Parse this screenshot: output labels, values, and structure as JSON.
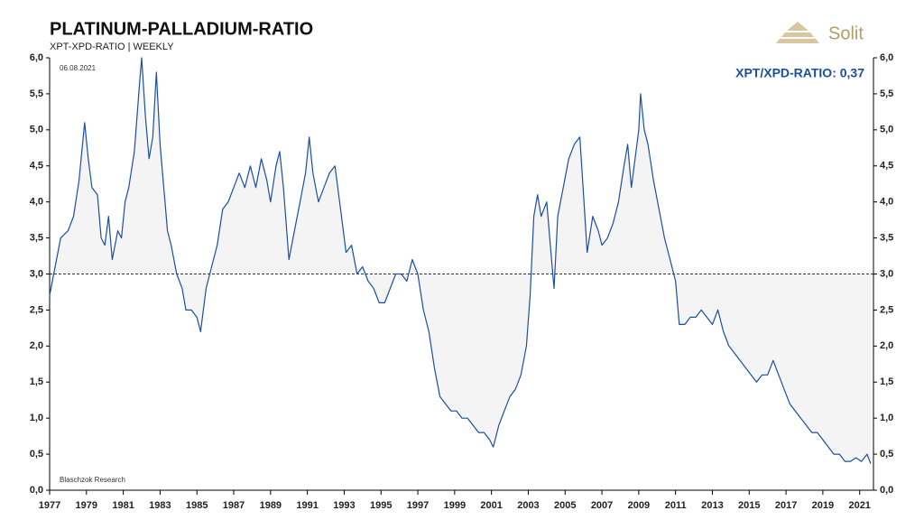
{
  "chart_data": {
    "type": "line",
    "title": "PLATINUM-PALLADIUM-RATIO",
    "subtitle": "XPT-XPD-RATIO | WEEKLY",
    "logo": "Solit",
    "annotations": {
      "date": "06.08.2021",
      "source": "Blaschzok Research",
      "last_value": "XPT/XPD-RATIO: 0,37"
    },
    "reference_line": 3,
    "xlim": [
      1977,
      2021.75
    ],
    "xticks": [
      1977,
      1979,
      1981,
      1983,
      1985,
      1987,
      1989,
      1991,
      1993,
      1995,
      1997,
      1999,
      2001,
      2003,
      2005,
      2007,
      2009,
      2011,
      2013,
      2015,
      2017,
      2019,
      2021
    ],
    "ylim": [
      0,
      6
    ],
    "yticks": [
      {
        "value": 0,
        "label": "0,0"
      },
      {
        "value": 0.5,
        "label": "0,5"
      },
      {
        "value": 1,
        "label": "1,0"
      },
      {
        "value": 1.5,
        "label": "1,5"
      },
      {
        "value": 2,
        "label": "2,0"
      },
      {
        "value": 2.5,
        "label": "2,5"
      },
      {
        "value": 3,
        "label": "3,0"
      },
      {
        "value": 3.5,
        "label": "3,5"
      },
      {
        "value": 4,
        "label": "4,0"
      },
      {
        "value": 4.5,
        "label": "4,5"
      },
      {
        "value": 5,
        "label": "5,0"
      },
      {
        "value": 5.5,
        "label": "5,5"
      },
      {
        "value": 6,
        "label": "6,0"
      }
    ],
    "y2lim": [
      0,
      6
    ],
    "y2ticks": [
      {
        "value": 0,
        "label": "0,0"
      },
      {
        "value": 0.5,
        "label": "0,5"
      },
      {
        "value": 1,
        "label": "1,0"
      },
      {
        "value": 1.5,
        "label": "1,5"
      },
      {
        "value": 2,
        "label": "2,0"
      },
      {
        "value": 2.5,
        "label": "2,5"
      },
      {
        "value": 3,
        "label": "3,0"
      },
      {
        "value": 3.5,
        "label": "3,5"
      },
      {
        "value": 4,
        "label": "4,0"
      },
      {
        "value": 4.5,
        "label": "4,5"
      },
      {
        "value": 5,
        "label": "5,0"
      },
      {
        "value": 5.5,
        "label": "5,5"
      },
      {
        "value": 6,
        "label": "6,0"
      }
    ],
    "x": [
      1977.0,
      1977.3,
      1977.6,
      1978.0,
      1978.3,
      1978.6,
      1978.9,
      1979.1,
      1979.3,
      1979.6,
      1979.8,
      1980.0,
      1980.2,
      1980.4,
      1980.7,
      1980.9,
      1981.1,
      1981.3,
      1981.6,
      1981.9,
      1982.0,
      1982.2,
      1982.4,
      1982.6,
      1982.8,
      1983.0,
      1983.2,
      1983.4,
      1983.6,
      1983.9,
      1984.2,
      1984.4,
      1984.7,
      1985.0,
      1985.2,
      1985.5,
      1985.8,
      1986.1,
      1986.4,
      1986.7,
      1987.0,
      1987.3,
      1987.6,
      1987.9,
      1988.2,
      1988.5,
      1988.8,
      1989.0,
      1989.3,
      1989.5,
      1989.7,
      1990.0,
      1990.3,
      1990.6,
      1990.9,
      1991.1,
      1991.3,
      1991.6,
      1991.9,
      1992.2,
      1992.5,
      1992.8,
      1993.1,
      1993.4,
      1993.7,
      1994.0,
      1994.3,
      1994.6,
      1994.9,
      1995.2,
      1995.5,
      1995.8,
      1996.1,
      1996.4,
      1996.7,
      1997.0,
      1997.3,
      1997.6,
      1997.9,
      1998.2,
      1998.5,
      1998.8,
      1999.1,
      1999.4,
      1999.7,
      2000.0,
      2000.3,
      2000.6,
      2000.9,
      2001.1,
      2001.4,
      2001.7,
      2002.0,
      2002.3,
      2002.6,
      2002.9,
      2003.1,
      2003.3,
      2003.5,
      2003.7,
      2004.0,
      2004.2,
      2004.4,
      2004.6,
      2004.9,
      2005.2,
      2005.5,
      2005.8,
      2006.0,
      2006.2,
      2006.5,
      2006.8,
      2007.0,
      2007.3,
      2007.6,
      2007.9,
      2008.2,
      2008.4,
      2008.6,
      2008.8,
      2009.0,
      2009.1,
      2009.3,
      2009.5,
      2009.8,
      2010.1,
      2010.4,
      2010.7,
      2011.0,
      2011.2,
      2011.5,
      2011.8,
      2012.1,
      2012.4,
      2012.7,
      2013.0,
      2013.3,
      2013.6,
      2013.9,
      2014.2,
      2014.5,
      2014.8,
      2015.1,
      2015.4,
      2015.7,
      2016.0,
      2016.3,
      2016.6,
      2016.9,
      2017.2,
      2017.5,
      2017.8,
      2018.1,
      2018.4,
      2018.7,
      2019.0,
      2019.3,
      2019.6,
      2019.9,
      2020.2,
      2020.5,
      2020.8,
      2021.1,
      2021.4,
      2021.6
    ],
    "series": [
      {
        "name": "XPT/XPD-RATIO",
        "color": "#1a4fa3",
        "values": [
          2.7,
          3.1,
          3.5,
          3.6,
          3.8,
          4.3,
          5.1,
          4.6,
          4.2,
          4.1,
          3.5,
          3.4,
          3.8,
          3.2,
          3.6,
          3.5,
          4.0,
          4.2,
          4.7,
          5.7,
          6.0,
          5.2,
          4.6,
          4.9,
          5.8,
          4.8,
          4.2,
          3.6,
          3.4,
          3.0,
          2.8,
          2.5,
          2.5,
          2.4,
          2.2,
          2.8,
          3.1,
          3.4,
          3.9,
          4.0,
          4.2,
          4.4,
          4.2,
          4.5,
          4.2,
          4.6,
          4.3,
          4.0,
          4.5,
          4.7,
          4.2,
          3.2,
          3.6,
          4.0,
          4.4,
          4.9,
          4.4,
          4.0,
          4.2,
          4.4,
          4.5,
          3.9,
          3.3,
          3.4,
          3.0,
          3.1,
          2.9,
          2.8,
          2.6,
          2.6,
          2.8,
          3.0,
          3.0,
          2.9,
          3.2,
          3.0,
          2.5,
          2.2,
          1.7,
          1.3,
          1.2,
          1.1,
          1.1,
          1.0,
          1.0,
          0.9,
          0.8,
          0.8,
          0.7,
          0.6,
          0.9,
          1.1,
          1.3,
          1.4,
          1.6,
          2.0,
          2.7,
          3.8,
          4.1,
          3.8,
          4.0,
          3.4,
          2.8,
          3.8,
          4.2,
          4.6,
          4.8,
          4.9,
          4.1,
          3.3,
          3.8,
          3.6,
          3.4,
          3.5,
          3.7,
          4.0,
          4.5,
          4.8,
          4.2,
          4.6,
          5.0,
          5.5,
          5.0,
          4.8,
          4.3,
          3.9,
          3.5,
          3.2,
          2.9,
          2.3,
          2.3,
          2.4,
          2.4,
          2.5,
          2.4,
          2.3,
          2.5,
          2.2,
          2.0,
          1.9,
          1.8,
          1.7,
          1.6,
          1.5,
          1.6,
          1.6,
          1.8,
          1.6,
          1.4,
          1.2,
          1.1,
          1.0,
          0.9,
          0.8,
          0.8,
          0.7,
          0.6,
          0.5,
          0.5,
          0.4,
          0.4,
          0.45,
          0.4,
          0.5,
          0.37
        ]
      }
    ]
  }
}
